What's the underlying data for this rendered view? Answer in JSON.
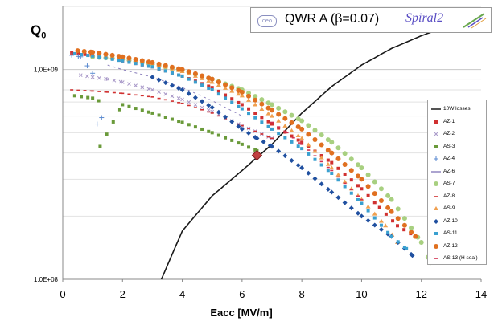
{
  "header": {
    "logo_text": "ceo",
    "title": "QWR A (β=0.07)",
    "brand": "Spiral2"
  },
  "chart_data": {
    "type": "scatter",
    "title": "",
    "xlabel": "Eacc [MV/m]",
    "ylabel": "Q0",
    "xlim": [
      0,
      14
    ],
    "ylim": [
      100000000,
      2000000000
    ],
    "yscale": "log",
    "x_ticks": [
      "0",
      "2",
      "4",
      "6",
      "8",
      "10",
      "12",
      "14"
    ],
    "y_ticks": [
      "1,0E+09",
      "1,0E+08"
    ],
    "grid": true,
    "legend_position": "right",
    "series": [
      {
        "name": "10W losses",
        "kind": "line",
        "color": "#1a1a1a",
        "x": [
          3.3,
          4,
          5,
          6,
          7,
          8,
          9,
          10,
          11,
          12,
          13,
          14
        ],
        "y": [
          100000000,
          170000000,
          250000000,
          330000000,
          440000000,
          620000000,
          830000000,
          1050000000,
          1260000000,
          1450000000,
          1630000000,
          1810000000
        ]
      },
      {
        "name": "AZ-1",
        "color": "#d03030",
        "marker": "square",
        "x": [
          0.3,
          1,
          2,
          3,
          4,
          5,
          6,
          7,
          8,
          9,
          10,
          10.6,
          11.2,
          11.8
        ],
        "y": [
          1200000000,
          1170000000,
          1100000000,
          1030000000,
          930000000,
          820000000,
          680000000,
          550000000,
          450000000,
          360000000,
          270000000,
          220000000,
          180000000,
          160000000
        ]
      },
      {
        "name": "AZ-2",
        "color": "#a898c8",
        "marker": "x",
        "x": [
          0.6,
          1,
          1.5,
          2,
          3,
          4,
          5,
          6,
          7
        ],
        "y": [
          940000000,
          920000000,
          900000000,
          870000000,
          800000000,
          720000000,
          630000000,
          540000000,
          470000000
        ]
      },
      {
        "name": "AS-3",
        "color": "#6a9a3a",
        "marker": "square",
        "x": [
          0.4,
          1,
          1.2,
          1.25,
          2,
          3,
          4,
          5,
          6,
          6.5
        ],
        "y": [
          750000000,
          730000000,
          710000000,
          430000000,
          680000000,
          620000000,
          560000000,
          500000000,
          440000000,
          410000000
        ]
      },
      {
        "name": "AZ-4",
        "color": "#5a8ad0",
        "marker": "plus",
        "x": [
          0.3,
          0.6,
          1,
          1.15,
          1.3
        ],
        "y": [
          1170000000,
          1150000000,
          960000000,
          550000000,
          590000000
        ]
      },
      {
        "name": "AZ-6",
        "kind": "dash",
        "color": "#5a4aa0",
        "x": [
          1.5,
          2,
          3,
          4,
          5,
          6
        ],
        "y": [
          1050000000,
          1000000000,
          920000000,
          820000000,
          710000000,
          600000000
        ]
      },
      {
        "name": "AS-7",
        "color": "#a8d080",
        "marker": "circle",
        "x": [
          1,
          2,
          3,
          4,
          5,
          6,
          7,
          8,
          9,
          10,
          11,
          12,
          12.3
        ],
        "y": [
          1150000000,
          1120000000,
          1060000000,
          990000000,
          900000000,
          800000000,
          680000000,
          570000000,
          450000000,
          340000000,
          240000000,
          150000000,
          120000000
        ]
      },
      {
        "name": "AZ-8",
        "color": "#d03030",
        "marker": "dash",
        "x": [
          0.3,
          1,
          1.5,
          2,
          3,
          4,
          5,
          6,
          7
        ],
        "y": [
          800000000,
          790000000,
          780000000,
          770000000,
          740000000,
          690000000,
          620000000,
          540000000,
          470000000
        ]
      },
      {
        "name": "AS-9",
        "color": "#f0a050",
        "marker": "triangle",
        "x": [
          1,
          2,
          3,
          4,
          5,
          6,
          7,
          8,
          9,
          10,
          10.8,
          11.2
        ],
        "y": [
          1180000000,
          1130000000,
          1070000000,
          980000000,
          870000000,
          750000000,
          600000000,
          470000000,
          340000000,
          240000000,
          180000000,
          150000000
        ]
      },
      {
        "name": "AZ-10",
        "color": "#2050a0",
        "marker": "diamond",
        "x": [
          3,
          4,
          5,
          6,
          6.5,
          7,
          8,
          9,
          10,
          11,
          11.7
        ],
        "y": [
          920000000,
          800000000,
          660000000,
          520000000,
          470000000,
          430000000,
          340000000,
          260000000,
          200000000,
          160000000,
          130000000
        ]
      },
      {
        "name": "AS-11",
        "color": "#3aa0d0",
        "marker": "square",
        "x": [
          0.4,
          1,
          2,
          3,
          4,
          5,
          6,
          7,
          8,
          9,
          10,
          11,
          11.5
        ],
        "y": [
          1190000000,
          1160000000,
          1100000000,
          1030000000,
          930000000,
          800000000,
          650000000,
          520000000,
          420000000,
          320000000,
          230000000,
          160000000,
          140000000
        ]
      },
      {
        "name": "AZ-12",
        "color": "#e07020",
        "marker": "circle",
        "x": [
          0.5,
          1,
          2,
          3,
          4,
          5,
          6,
          7,
          8,
          9,
          10,
          11,
          11.8
        ],
        "y": [
          1230000000,
          1210000000,
          1150000000,
          1080000000,
          1000000000,
          900000000,
          780000000,
          640000000,
          520000000,
          400000000,
          300000000,
          210000000,
          160000000
        ]
      },
      {
        "name": "AS-13 (H seal)",
        "color": "#d03050",
        "marker": "dash",
        "x": [
          7,
          7.5,
          8,
          9,
          10
        ],
        "y": [
          560000000,
          500000000,
          440000000,
          330000000,
          240000000
        ]
      }
    ],
    "annotations": [
      {
        "kind": "diamond",
        "color": "#c04040",
        "x": 6.5,
        "y": 390000000
      }
    ]
  }
}
